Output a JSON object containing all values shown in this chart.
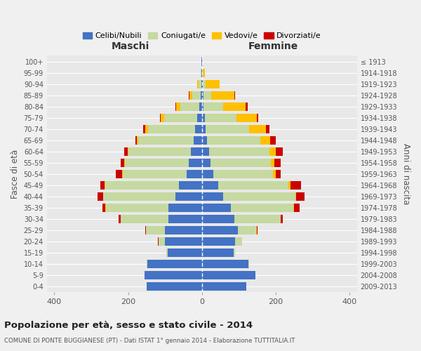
{
  "age_groups": [
    "100+",
    "95-99",
    "90-94",
    "85-89",
    "80-84",
    "75-79",
    "70-74",
    "65-69",
    "60-64",
    "55-59",
    "50-54",
    "45-49",
    "40-44",
    "35-39",
    "30-34",
    "25-29",
    "20-24",
    "15-19",
    "10-14",
    "5-9",
    "0-4"
  ],
  "birth_years": [
    "≤ 1913",
    "1914-1918",
    "1919-1923",
    "1924-1928",
    "1929-1933",
    "1934-1938",
    "1939-1943",
    "1944-1948",
    "1949-1953",
    "1954-1958",
    "1959-1963",
    "1964-1968",
    "1969-1973",
    "1974-1978",
    "1979-1983",
    "1984-1988",
    "1989-1993",
    "1994-1998",
    "1999-2003",
    "2004-2008",
    "2009-2013"
  ],
  "males": {
    "celibi": [
      1,
      1,
      2,
      4,
      8,
      12,
      18,
      22,
      30,
      36,
      42,
      62,
      72,
      90,
      90,
      100,
      100,
      92,
      148,
      155,
      150
    ],
    "coniugati": [
      1,
      2,
      7,
      22,
      50,
      90,
      128,
      150,
      170,
      172,
      172,
      200,
      195,
      170,
      130,
      52,
      18,
      5,
      2,
      0,
      0
    ],
    "vedovi": [
      0,
      1,
      4,
      8,
      12,
      10,
      8,
      4,
      2,
      2,
      2,
      2,
      1,
      1,
      0,
      0,
      0,
      0,
      0,
      0,
      0
    ],
    "divorziati": [
      0,
      0,
      0,
      1,
      2,
      2,
      5,
      5,
      9,
      10,
      18,
      12,
      14,
      8,
      5,
      2,
      1,
      0,
      0,
      0,
      0
    ]
  },
  "females": {
    "nubili": [
      1,
      1,
      2,
      4,
      5,
      8,
      10,
      14,
      20,
      24,
      30,
      45,
      58,
      78,
      88,
      98,
      90,
      85,
      125,
      145,
      120
    ],
    "coniugate": [
      1,
      2,
      8,
      22,
      52,
      85,
      118,
      145,
      162,
      162,
      162,
      190,
      195,
      170,
      125,
      48,
      18,
      5,
      2,
      0,
      0
    ],
    "vedove": [
      1,
      5,
      38,
      62,
      62,
      55,
      45,
      26,
      18,
      10,
      8,
      5,
      2,
      1,
      0,
      2,
      0,
      0,
      0,
      0,
      0
    ],
    "divorziate": [
      0,
      0,
      0,
      2,
      5,
      5,
      10,
      15,
      18,
      18,
      14,
      28,
      22,
      15,
      5,
      2,
      1,
      0,
      0,
      0,
      0
    ]
  },
  "colors": {
    "celibi_nubili": "#4472c4",
    "coniugati": "#c5d9a0",
    "vedovi": "#ffc000",
    "divorziati": "#cc0000"
  },
  "title": "Popolazione per età, sesso e stato civile - 2014",
  "subtitle": "COMUNE DI PONTE BUGGIANESE (PT) - Dati ISTAT 1° gennaio 2014 - Elaborazione TUTTITALIA.IT",
  "xlabel_left": "Maschi",
  "xlabel_right": "Femmine",
  "ylabel_left": "Fasce di età",
  "ylabel_right": "Anni di nascita",
  "xlim": 420,
  "background_color": "#f0f0f0",
  "plot_bg_color": "#e8e8e8",
  "grid_color": "#ffffff"
}
